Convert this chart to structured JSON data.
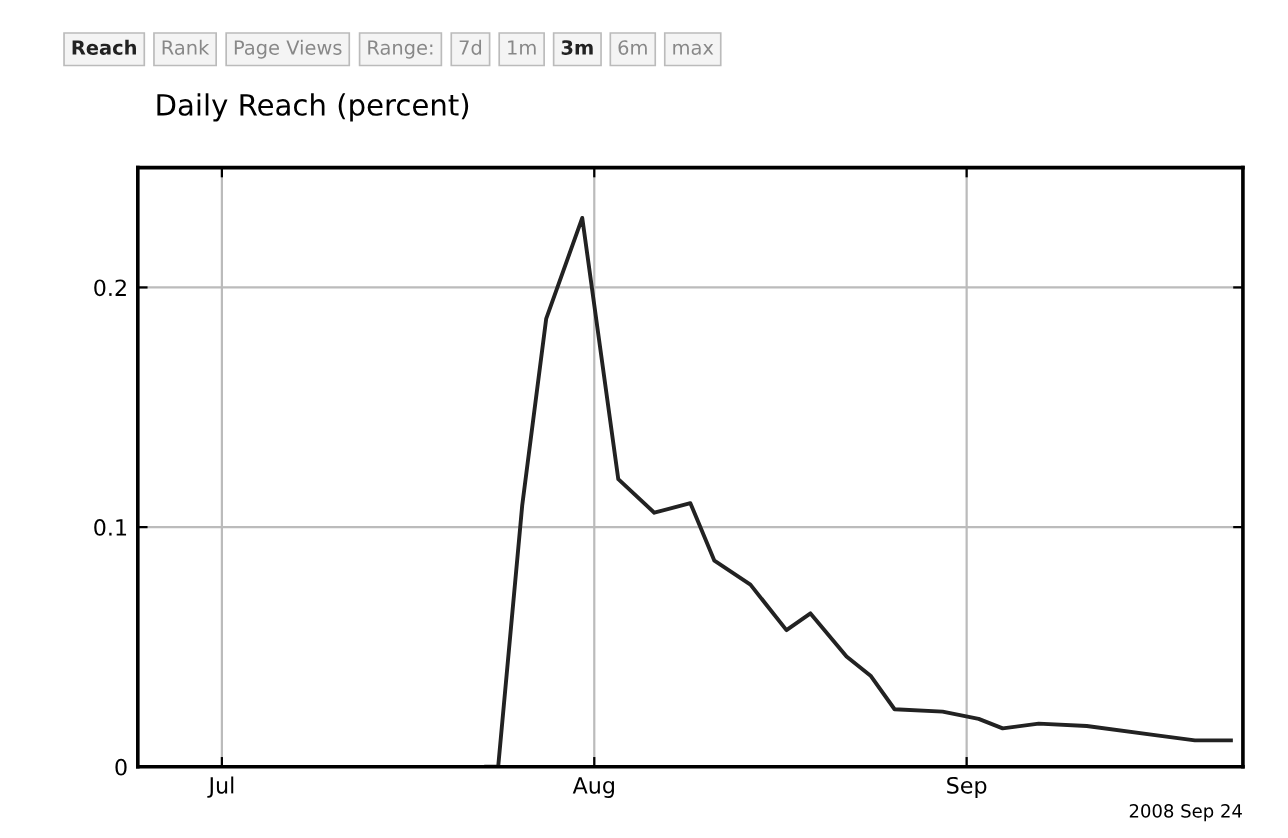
{
  "chart_data": {
    "type": "line",
    "title": "Daily Reach (percent)",
    "x": [
      "2008-07-23",
      "2008-07-24",
      "2008-07-26",
      "2008-07-28",
      "2008-07-31",
      "2008-08-03",
      "2008-08-06",
      "2008-08-09",
      "2008-08-11",
      "2008-08-14",
      "2008-08-17",
      "2008-08-19",
      "2008-08-22",
      "2008-08-24",
      "2008-08-26",
      "2008-08-30",
      "2008-09-02",
      "2008-09-04",
      "2008-09-07",
      "2008-09-11",
      "2008-09-17",
      "2008-09-20",
      "2008-09-23"
    ],
    "series": [
      {
        "color": "#222222",
        "values": [
          0,
          0,
          0.109,
          0.187,
          0.229,
          0.12,
          0.106,
          0.11,
          0.086,
          0.076,
          0.057,
          0.064,
          0.046,
          0.038,
          0.024,
          0.023,
          0.02,
          0.016,
          0.018,
          0.017,
          0.013,
          0.011,
          0.011
        ]
      }
    ],
    "xlim": [
      "2008-06-24",
      "2008-09-24"
    ],
    "xticks": [
      {
        "value": "2008-07-01",
        "label": "Jul"
      },
      {
        "value": "2008-08-01",
        "label": "Aug"
      },
      {
        "value": "2008-09-01",
        "label": "Sep"
      }
    ],
    "ylim": [
      0,
      0.25
    ],
    "yticks": [
      0,
      0.1,
      0.2
    ],
    "grid": true,
    "annotations": [
      "Reach",
      "Rank",
      "Page Views",
      "Range:",
      "7d",
      "1m",
      "3m",
      "6m",
      "max",
      "2008 Sep 24"
    ]
  }
}
